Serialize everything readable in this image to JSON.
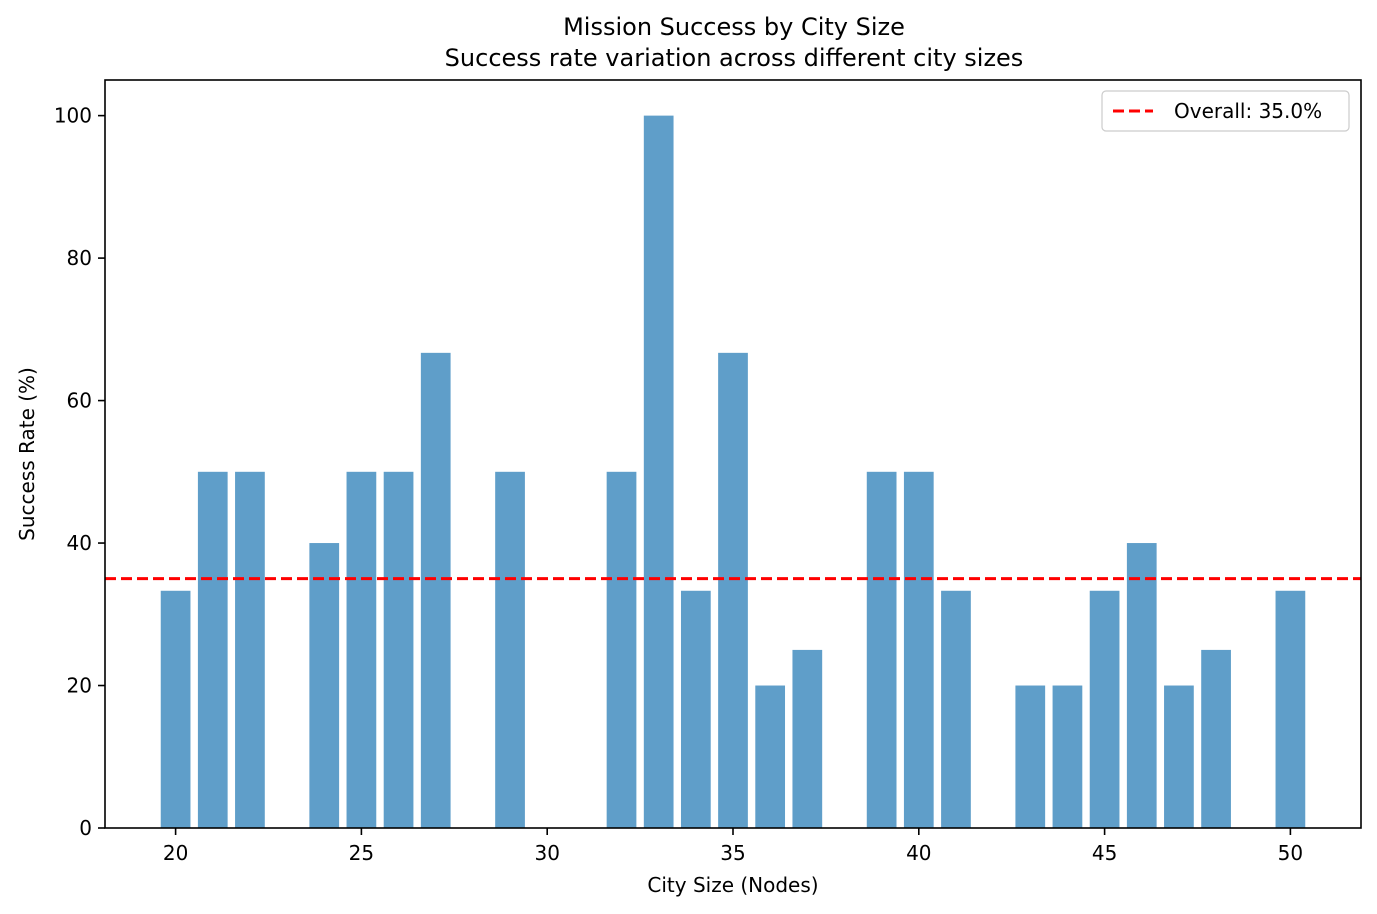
{
  "chart_data": {
    "type": "bar",
    "title": "Mission Success by City Size",
    "subtitle": "Success rate variation across different city sizes",
    "xlabel": "City Size (Nodes)",
    "ylabel": "Success Rate (%)",
    "x": [
      20,
      21,
      22,
      24,
      25,
      26,
      27,
      29,
      30,
      32,
      33,
      34,
      35,
      36,
      37,
      39,
      40,
      41,
      43,
      44,
      45,
      46,
      47,
      48,
      50
    ],
    "values": [
      33.3,
      50,
      50,
      40,
      50,
      50,
      66.7,
      50,
      0,
      50,
      100,
      33.3,
      66.7,
      20,
      25,
      50,
      50,
      33.3,
      20,
      20,
      33.3,
      40,
      20,
      25,
      33.3
    ],
    "xlim": [
      18.1,
      51.9
    ],
    "ylim": [
      0,
      105
    ],
    "xticks": [
      20,
      25,
      30,
      35,
      40,
      45,
      50
    ],
    "yticks": [
      0,
      20,
      40,
      60,
      80,
      100
    ],
    "bar_color": "#5f9ec9",
    "reference_line": {
      "value": 35.0,
      "label": "Overall: 35.0%",
      "color": "#ff0000",
      "style": "dashed"
    },
    "legend": {
      "position": "top-right",
      "entries": [
        "Overall: 35.0%"
      ]
    },
    "grid": false
  }
}
